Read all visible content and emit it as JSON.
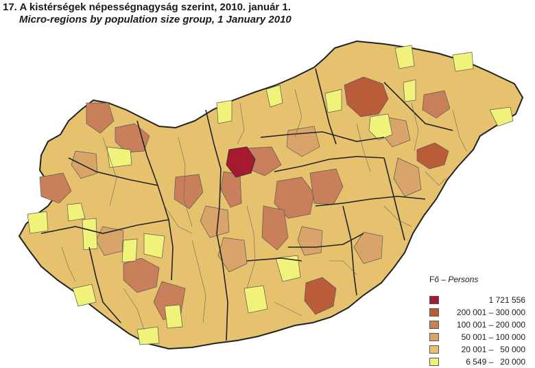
{
  "title_hu": "17. A kistérségek népességnagyság szerint, 2010. január 1.",
  "title_en": "Micro-regions by population size group, 1 January 2010",
  "legend": {
    "title_hu": "Fő",
    "title_sep": " – ",
    "title_en": "Persons",
    "classes": [
      {
        "label": "1 721 556",
        "color": "#a6192e"
      },
      {
        "label": "200 001 – 300 000",
        "color": "#b85c3a"
      },
      {
        "label": "100 001 – 200 000",
        "color": "#c9805a"
      },
      {
        "label": "50 001 – 100 000",
        "color": "#d9a46a"
      },
      {
        "label": "20 001 –   50 000",
        "color": "#e6c26e"
      },
      {
        "label": "6 549 –   20 000",
        "color": "#f0f27a"
      }
    ]
  }
}
